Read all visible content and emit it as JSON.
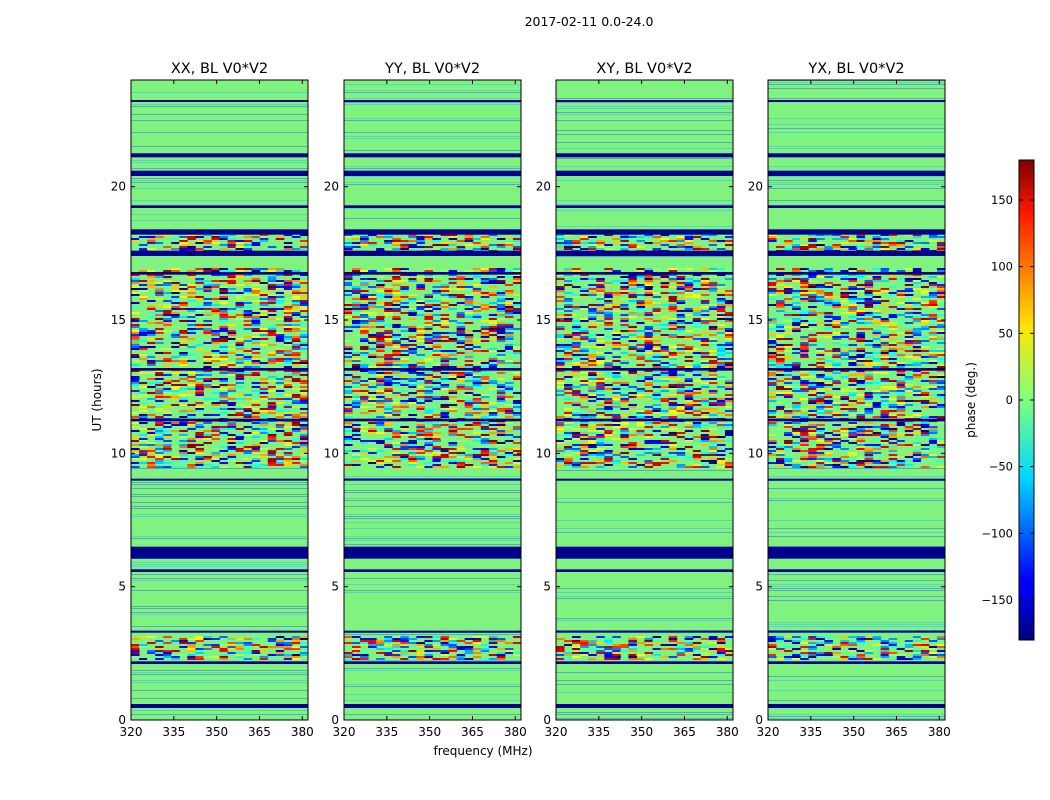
{
  "chart_data": {
    "type": "heatmap",
    "suptitle": "2017-02-11 0.0-24.0",
    "xlabel": "frequency (MHz)",
    "ylabel": "UT (hours)",
    "xlim": [
      320,
      382
    ],
    "ylim": [
      0,
      24
    ],
    "x_ticks": [
      320,
      335,
      350,
      365,
      380
    ],
    "x_tick_labels": [
      "320",
      "335",
      "350",
      "365",
      "380"
    ],
    "y_ticks": [
      0,
      5,
      10,
      15,
      20
    ],
    "y_tick_labels": [
      "0",
      "5",
      "10",
      "15",
      "20"
    ],
    "panels": [
      {
        "title": "XX, BL V0*V2"
      },
      {
        "title": "YY, BL V0*V2"
      },
      {
        "title": "XY, BL V0*V2"
      },
      {
        "title": "YX, BL V0*V2"
      }
    ],
    "colorbar": {
      "label": "phase (deg.)",
      "range": [
        -180,
        180
      ],
      "ticks": [
        -150,
        -100,
        -50,
        0,
        50,
        100,
        150
      ],
      "tick_labels": [
        "−150",
        "−100",
        "−50",
        "0",
        "50",
        "100",
        "150"
      ],
      "colormap": "jet"
    },
    "dark_bands_hours": [
      [
        0.45,
        0.6
      ],
      [
        2.1,
        2.2
      ],
      [
        3.3,
        3.35
      ],
      [
        5.55,
        5.65
      ],
      [
        6.05,
        6.5
      ],
      [
        9.0,
        9.05
      ],
      [
        11.2,
        11.3
      ],
      [
        13.1,
        13.2
      ],
      [
        16.7,
        16.8
      ],
      [
        17.4,
        17.6
      ],
      [
        18.2,
        18.4
      ],
      [
        19.2,
        19.3
      ],
      [
        20.4,
        20.6
      ],
      [
        21.1,
        21.25
      ],
      [
        23.2,
        23.25
      ]
    ],
    "noisy_bands_hours": [
      [
        2.3,
        3.2
      ],
      [
        9.5,
        17.0
      ],
      [
        17.6,
        18.3
      ]
    ]
  },
  "colors": {
    "background_phase": "#7ff27f",
    "dark_band": "#00008f",
    "axes": "#000000"
  }
}
